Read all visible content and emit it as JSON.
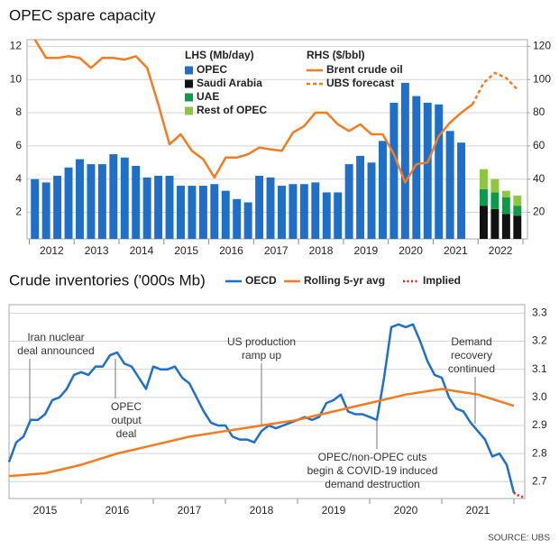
{
  "chart_data": [
    {
      "type": "bar",
      "title": "OPEC spare capacity",
      "legend_titles": [
        "LHS (Mb/day)",
        "RHS ($/bbl)"
      ],
      "x": [
        2011.625,
        2011.875,
        2012.125,
        2012.375,
        2012.625,
        2012.875,
        2013.125,
        2013.375,
        2013.625,
        2013.875,
        2014.125,
        2014.375,
        2014.625,
        2014.875,
        2015.125,
        2015.375,
        2015.625,
        2015.875,
        2016.125,
        2016.375,
        2016.625,
        2016.875,
        2017.125,
        2017.375,
        2017.625,
        2017.875,
        2018.125,
        2018.375,
        2018.625,
        2018.875,
        2019.125,
        2019.375,
        2019.625,
        2019.875,
        2020.125,
        2020.375,
        2020.625,
        2020.875,
        2021.125,
        2021.375,
        2021.625,
        2021.875,
        2022.125,
        2022.375
      ],
      "xlim": [
        2011.45,
        2022.6
      ],
      "xticks": [
        2012,
        2013,
        2014,
        2015,
        2016,
        2017,
        2018,
        2019,
        2020,
        2021,
        2022
      ],
      "ylim": [
        0.4,
        12.4
      ],
      "yticks": [
        2,
        4,
        6,
        8,
        10,
        12
      ],
      "y2lim": [
        4,
        124
      ],
      "y2ticks": [
        20,
        40,
        60,
        80,
        100,
        120
      ],
      "grid": true,
      "series": [
        {
          "name": "OPEC",
          "kind": "bar",
          "color": "#1f6fc9",
          "values": [
            4.0,
            3.8,
            4.2,
            4.7,
            5.2,
            4.9,
            4.9,
            5.5,
            5.3,
            4.8,
            4.1,
            4.2,
            4.2,
            3.6,
            3.6,
            3.6,
            3.7,
            3.3,
            2.8,
            2.6,
            4.2,
            4.1,
            3.6,
            3.7,
            3.7,
            3.8,
            3.2,
            3.2,
            4.9,
            5.4,
            5.0,
            6.3,
            8.6,
            9.8,
            9.0,
            8.6,
            8.5,
            6.9,
            6.2,
            null,
            null,
            null,
            null,
            null
          ]
        },
        {
          "name": "Saudi Arabia",
          "kind": "bar",
          "color": "#111111",
          "values": [
            null,
            null,
            null,
            null,
            null,
            null,
            null,
            null,
            null,
            null,
            null,
            null,
            null,
            null,
            null,
            null,
            null,
            null,
            null,
            null,
            null,
            null,
            null,
            null,
            null,
            null,
            null,
            null,
            null,
            null,
            null,
            null,
            null,
            null,
            null,
            null,
            null,
            null,
            null,
            null,
            2.4,
            2.2,
            1.9,
            1.8
          ]
        },
        {
          "name": "UAE",
          "kind": "bar",
          "color": "#0e9a48",
          "values": [
            null,
            null,
            null,
            null,
            null,
            null,
            null,
            null,
            null,
            null,
            null,
            null,
            null,
            null,
            null,
            null,
            null,
            null,
            null,
            null,
            null,
            null,
            null,
            null,
            null,
            null,
            null,
            null,
            null,
            null,
            null,
            null,
            null,
            null,
            null,
            null,
            null,
            null,
            null,
            null,
            1.0,
            1.0,
            1.0,
            0.6
          ]
        },
        {
          "name": "Rest of OPEC",
          "kind": "bar",
          "color": "#8dc63f",
          "values": [
            null,
            null,
            null,
            null,
            null,
            null,
            null,
            null,
            null,
            null,
            null,
            null,
            null,
            null,
            null,
            null,
            null,
            null,
            null,
            null,
            null,
            null,
            null,
            null,
            null,
            null,
            null,
            null,
            null,
            null,
            null,
            null,
            null,
            null,
            null,
            null,
            null,
            null,
            null,
            null,
            1.2,
            0.8,
            0.4,
            0.6
          ]
        },
        {
          "name": "Brent crude oil",
          "kind": "line",
          "axis": "y2",
          "color": "#f47b20",
          "style": "solid",
          "values": [
            124,
            113,
            113,
            114,
            113,
            107,
            113,
            113,
            112,
            114,
            107,
            85,
            61,
            67,
            57,
            52,
            41,
            53,
            53,
            55,
            59,
            58,
            57,
            68,
            72,
            80,
            80,
            73,
            69,
            73,
            67,
            67,
            55,
            38,
            49,
            50,
            66,
            74,
            80,
            85,
            null,
            null,
            null,
            null
          ]
        },
        {
          "name": "UBS forecast",
          "kind": "line",
          "axis": "y2",
          "color": "#f47b20",
          "style": "dashed",
          "values": [
            null,
            null,
            null,
            null,
            null,
            null,
            null,
            null,
            null,
            null,
            null,
            null,
            null,
            null,
            null,
            null,
            null,
            null,
            null,
            null,
            null,
            null,
            null,
            null,
            null,
            null,
            null,
            null,
            null,
            null,
            null,
            null,
            null,
            null,
            null,
            null,
            null,
            null,
            null,
            85,
            98,
            104,
            101,
            94
          ]
        }
      ]
    },
    {
      "type": "line",
      "title": "Crude inventories ('000s Mb)",
      "xlim": [
        2014.5,
        2021.65
      ],
      "xticks": [
        2015,
        2016,
        2017,
        2018,
        2019,
        2020,
        2021
      ],
      "ylim": [
        2.64,
        3.33
      ],
      "yticks": [
        2.7,
        2.8,
        2.9,
        {
          "value": 3,
          "label": "3.0"
        },
        3.1,
        3.2,
        3.3
      ],
      "y_axis_side": "right",
      "grid": true,
      "series": [
        {
          "name": "OECD",
          "color": "#1f6fc9",
          "style": "solid",
          "x": [
            2014.5,
            2014.6,
            2014.7,
            2014.8,
            2014.9,
            2015.0,
            2015.1,
            2015.2,
            2015.3,
            2015.4,
            2015.5,
            2015.6,
            2015.7,
            2015.8,
            2015.9,
            2016.0,
            2016.1,
            2016.2,
            2016.3,
            2016.4,
            2016.5,
            2016.6,
            2016.7,
            2016.8,
            2016.9,
            2017.0,
            2017.1,
            2017.2,
            2017.3,
            2017.4,
            2017.5,
            2017.6,
            2017.7,
            2017.8,
            2017.9,
            2018.0,
            2018.1,
            2018.2,
            2018.3,
            2018.4,
            2018.5,
            2018.6,
            2018.7,
            2018.8,
            2018.9,
            2019.0,
            2019.1,
            2019.2,
            2019.3,
            2019.4,
            2019.5,
            2019.6,
            2019.7,
            2019.8,
            2019.9,
            2020.0,
            2020.1,
            2020.2,
            2020.3,
            2020.4,
            2020.5,
            2020.6,
            2020.7,
            2020.8,
            2020.9,
            2021.0,
            2021.1,
            2021.2,
            2021.3,
            2021.4,
            2021.5
          ],
          "values": [
            2.77,
            2.84,
            2.86,
            2.92,
            2.92,
            2.94,
            2.99,
            3.0,
            3.03,
            3.08,
            3.09,
            3.08,
            3.11,
            3.11,
            3.15,
            3.16,
            3.12,
            3.11,
            3.07,
            3.03,
            3.11,
            3.1,
            3.1,
            3.11,
            3.07,
            3.05,
            3.0,
            2.95,
            2.91,
            2.9,
            2.9,
            2.86,
            2.85,
            2.85,
            2.84,
            2.88,
            2.9,
            2.89,
            2.9,
            2.91,
            2.92,
            2.93,
            2.92,
            2.93,
            2.98,
            2.99,
            3.01,
            2.95,
            2.94,
            2.94,
            2.93,
            2.92,
            3.07,
            3.25,
            3.26,
            3.25,
            3.26,
            3.2,
            3.13,
            3.08,
            3.07,
            3.0,
            2.96,
            2.95,
            2.91,
            2.88,
            2.85,
            2.79,
            2.8,
            2.76,
            2.66
          ]
        },
        {
          "name": "Rolling 5-yr avg",
          "color": "#f47b20",
          "style": "solid",
          "x": [
            2014.5,
            2015.0,
            2015.5,
            2016.0,
            2016.5,
            2017.0,
            2017.5,
            2018.0,
            2018.5,
            2019.0,
            2019.5,
            2020.0,
            2020.5,
            2021.0,
            2021.5
          ],
          "values": [
            2.72,
            2.73,
            2.76,
            2.8,
            2.83,
            2.86,
            2.88,
            2.9,
            2.92,
            2.95,
            2.98,
            3.01,
            3.03,
            3.01,
            2.97
          ]
        },
        {
          "name": "Implied",
          "color": "#e2231a",
          "style": "dotted",
          "x": [
            2021.5,
            2021.57,
            2021.63
          ],
          "values": [
            2.66,
            2.65,
            2.645
          ]
        }
      ],
      "annotations": [
        {
          "lines": [
            "Iran nuclear",
            "deal announced"
          ]
        },
        {
          "lines": [
            "OPEC",
            "output",
            "deal"
          ]
        },
        {
          "lines": [
            "US production",
            "ramp up"
          ]
        },
        {
          "lines": [
            "OPEC/non-OPEC cuts",
            "begin & COVID-19 induced",
            "demand destruction"
          ]
        },
        {
          "lines": [
            "Demand",
            "recovery",
            "continued"
          ]
        }
      ]
    }
  ],
  "source": "SOURCE: UBS"
}
